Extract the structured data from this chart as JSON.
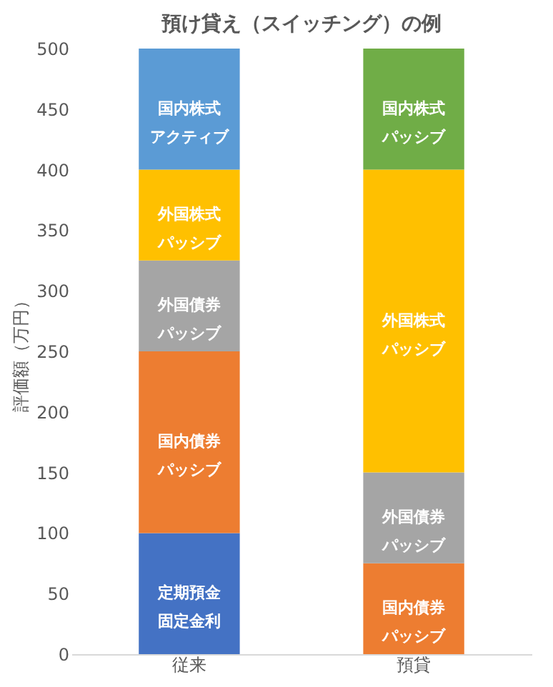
{
  "chart_data": {
    "type": "bar",
    "stacked": true,
    "title": "預け貸え（スイッチング）の例",
    "ylabel": "評価額（万円）",
    "categories": [
      "従来",
      "預貸"
    ],
    "ylim": [
      0,
      500
    ],
    "yticks": [
      0,
      50,
      100,
      150,
      200,
      250,
      300,
      350,
      400,
      450,
      500
    ],
    "grid": false,
    "series": [
      {
        "name": "定期預金固定金利",
        "color": "#4472c4",
        "values": [
          100,
          null
        ]
      },
      {
        "name": "国内債券パッシブ",
        "color": "#ed7d31",
        "values": [
          150,
          75
        ]
      },
      {
        "name": "外国債券パッシブ",
        "color": "#a5a5a5",
        "values": [
          75,
          75
        ]
      },
      {
        "name": "外国株式パッシブ",
        "color": "#ffc000",
        "values": [
          75,
          250
        ]
      },
      {
        "name": "国内株式アクティブ",
        "color": "#5b9bd5",
        "values": [
          100,
          null
        ]
      },
      {
        "name": "国内株式パッシブ",
        "color": "#70ad47",
        "values": [
          null,
          100
        ]
      }
    ]
  }
}
